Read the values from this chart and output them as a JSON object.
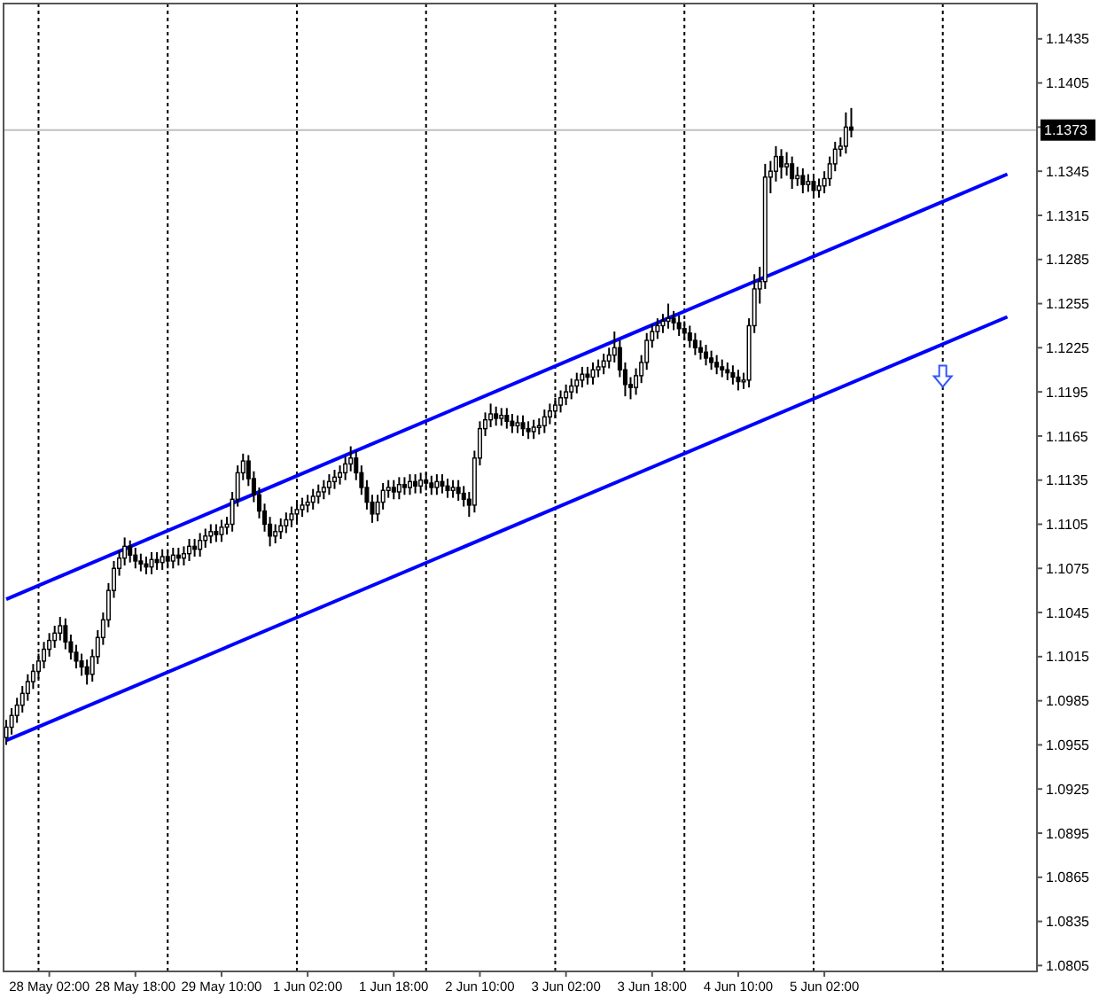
{
  "chart_data": {
    "type": "candlestick",
    "categories": [
      null,
      null,
      null,
      null,
      null,
      null,
      null,
      null,
      "28 May 02:00",
      null,
      null,
      null,
      null,
      null,
      null,
      null,
      null,
      null,
      null,
      null,
      null,
      null,
      null,
      null,
      "28 May 18:00",
      null,
      null,
      null,
      null,
      null,
      null,
      null,
      null,
      null,
      null,
      null,
      null,
      null,
      null,
      null,
      "29 May 10:00",
      null,
      null,
      null,
      null,
      null,
      null,
      null,
      null,
      null,
      null,
      null,
      null,
      null,
      null,
      null,
      "1 Jun 02:00",
      null,
      null,
      null,
      null,
      null,
      null,
      null,
      null,
      null,
      null,
      null,
      null,
      null,
      null,
      null,
      "1 Jun 18:00",
      null,
      null,
      null,
      null,
      null,
      null,
      null,
      null,
      null,
      null,
      null,
      null,
      null,
      null,
      null,
      "2 Jun 10:00",
      null,
      null,
      null,
      null,
      null,
      null,
      null,
      null,
      null,
      null,
      null,
      null,
      null,
      null,
      null,
      "3 Jun 02:00",
      null,
      null,
      null,
      null,
      null,
      null,
      null,
      null,
      null,
      null,
      null,
      null,
      null,
      null,
      null,
      "3 Jun 18:00",
      null,
      null,
      null,
      null,
      null,
      null,
      null,
      null,
      null,
      null,
      null,
      null,
      null,
      null,
      null,
      "4 Jun 10:00",
      null,
      null,
      null,
      null,
      null,
      null,
      null,
      null,
      null,
      null,
      null,
      null,
      null,
      null,
      null,
      "5 Jun 02:00",
      null,
      null,
      null,
      null,
      null,
      null,
      null,
      null,
      null,
      null,
      null,
      null,
      null,
      null,
      null,
      null,
      null,
      null,
      null,
      null,
      null,
      null,
      null,
      null,
      null,
      null,
      null,
      null,
      null,
      null,
      null,
      null,
      null,
      null,
      null,
      null,
      null,
      null,
      null
    ],
    "ohlc": [
      [
        1.096,
        1.0972,
        1.0955,
        1.0967
      ],
      [
        1.0967,
        1.098,
        1.0962,
        1.0975
      ],
      [
        1.0975,
        1.0987,
        1.097,
        1.0982
      ],
      [
        1.0982,
        1.0995,
        1.0977,
        1.099
      ],
      [
        1.099,
        1.1003,
        1.0985,
        1.0998
      ],
      [
        1.0998,
        1.101,
        1.0993,
        1.1005
      ],
      [
        1.1005,
        1.1017,
        1.1,
        1.1012
      ],
      [
        1.1012,
        1.1025,
        1.1007,
        1.102
      ],
      [
        1.102,
        1.1031,
        1.1015,
        1.1026
      ],
      [
        1.1026,
        1.1036,
        1.1021,
        1.1031
      ],
      [
        1.1031,
        1.1042,
        1.1026,
        1.1036
      ],
      [
        1.1036,
        1.1041,
        1.102,
        1.1025
      ],
      [
        1.1025,
        1.103,
        1.1013,
        1.1018
      ],
      [
        1.1018,
        1.1023,
        1.1007,
        1.1012
      ],
      [
        1.1012,
        1.1017,
        1.1002,
        1.1008
      ],
      [
        1.1008,
        1.1013,
        1.0996,
        1.1003
      ],
      [
        1.1003,
        1.102,
        1.0998,
        1.1015
      ],
      [
        1.1015,
        1.1033,
        1.101,
        1.1028
      ],
      [
        1.1028,
        1.1045,
        1.1023,
        1.104
      ],
      [
        1.104,
        1.1065,
        1.1035,
        1.106
      ],
      [
        1.106,
        1.108,
        1.1055,
        1.1075
      ],
      [
        1.1075,
        1.1087,
        1.107,
        1.1082
      ],
      [
        1.1082,
        1.1096,
        1.1077,
        1.109
      ],
      [
        1.109,
        1.1094,
        1.1079,
        1.1084
      ],
      [
        1.1084,
        1.1089,
        1.1075,
        1.108
      ],
      [
        1.108,
        1.1085,
        1.1073,
        1.1078
      ],
      [
        1.1078,
        1.1083,
        1.1071,
        1.1076
      ],
      [
        1.1076,
        1.1086,
        1.1071,
        1.1081
      ],
      [
        1.1081,
        1.1086,
        1.1074,
        1.1079
      ],
      [
        1.1079,
        1.1088,
        1.1074,
        1.1083
      ],
      [
        1.1083,
        1.1088,
        1.1075,
        1.108
      ],
      [
        1.108,
        1.1089,
        1.1075,
        1.1084
      ],
      [
        1.1084,
        1.1089,
        1.1077,
        1.1082
      ],
      [
        1.1082,
        1.109,
        1.1077,
        1.1085
      ],
      [
        1.1085,
        1.1095,
        1.108,
        1.109
      ],
      [
        1.109,
        1.1095,
        1.1083,
        1.1088
      ],
      [
        1.1088,
        1.1099,
        1.1083,
        1.1094
      ],
      [
        1.1094,
        1.1102,
        1.1089,
        1.1097
      ],
      [
        1.1097,
        1.1105,
        1.1092,
        1.11
      ],
      [
        1.11,
        1.1105,
        1.1093,
        1.1098
      ],
      [
        1.1098,
        1.1108,
        1.1093,
        1.1103
      ],
      [
        1.1103,
        1.111,
        1.1098,
        1.1105
      ],
      [
        1.1105,
        1.1127,
        1.11,
        1.1122
      ],
      [
        1.1122,
        1.1145,
        1.1117,
        1.114
      ],
      [
        1.114,
        1.1153,
        1.1135,
        1.1148
      ],
      [
        1.1148,
        1.1152,
        1.1131,
        1.1136
      ],
      [
        1.1136,
        1.1141,
        1.112,
        1.1125
      ],
      [
        1.1125,
        1.113,
        1.1109,
        1.1114
      ],
      [
        1.1114,
        1.1119,
        1.11,
        1.1105
      ],
      [
        1.1105,
        1.111,
        1.109,
        1.1097
      ],
      [
        1.1097,
        1.1105,
        1.1092,
        1.11
      ],
      [
        1.11,
        1.1109,
        1.1095,
        1.1104
      ],
      [
        1.1104,
        1.1113,
        1.1099,
        1.1108
      ],
      [
        1.1108,
        1.1117,
        1.1103,
        1.1112
      ],
      [
        1.1112,
        1.112,
        1.1107,
        1.1115
      ],
      [
        1.1115,
        1.1123,
        1.111,
        1.1118
      ],
      [
        1.1118,
        1.1125,
        1.1113,
        1.112
      ],
      [
        1.112,
        1.1129,
        1.1115,
        1.1124
      ],
      [
        1.1124,
        1.1132,
        1.1119,
        1.1127
      ],
      [
        1.1127,
        1.1135,
        1.1122,
        1.113
      ],
      [
        1.113,
        1.1139,
        1.1125,
        1.1134
      ],
      [
        1.1134,
        1.1142,
        1.1129,
        1.1137
      ],
      [
        1.1137,
        1.1145,
        1.1132,
        1.114
      ],
      [
        1.114,
        1.1151,
        1.1135,
        1.1146
      ],
      [
        1.1146,
        1.1158,
        1.1141,
        1.115
      ],
      [
        1.115,
        1.1155,
        1.1135,
        1.114
      ],
      [
        1.114,
        1.1145,
        1.1125,
        1.113
      ],
      [
        1.113,
        1.1135,
        1.1115,
        1.112
      ],
      [
        1.112,
        1.1125,
        1.1106,
        1.1112
      ],
      [
        1.1112,
        1.1125,
        1.1107,
        1.112
      ],
      [
        1.112,
        1.1133,
        1.1115,
        1.1128
      ],
      [
        1.1128,
        1.1135,
        1.1123,
        1.113
      ],
      [
        1.113,
        1.1135,
        1.1122,
        1.1127
      ],
      [
        1.1127,
        1.1137,
        1.1122,
        1.1132
      ],
      [
        1.1132,
        1.1137,
        1.1125,
        1.113
      ],
      [
        1.113,
        1.1139,
        1.1125,
        1.1134
      ],
      [
        1.1134,
        1.1139,
        1.1126,
        1.1131
      ],
      [
        1.1131,
        1.114,
        1.1126,
        1.1135
      ],
      [
        1.1135,
        1.114,
        1.1128,
        1.1133
      ],
      [
        1.1133,
        1.1138,
        1.1125,
        1.113
      ],
      [
        1.113,
        1.1139,
        1.1125,
        1.1134
      ],
      [
        1.1134,
        1.1139,
        1.1126,
        1.1131
      ],
      [
        1.1131,
        1.1136,
        1.1123,
        1.1128
      ],
      [
        1.1128,
        1.1135,
        1.1123,
        1.113
      ],
      [
        1.113,
        1.1135,
        1.1121,
        1.1126
      ],
      [
        1.1126,
        1.1131,
        1.1117,
        1.1122
      ],
      [
        1.1122,
        1.1127,
        1.111,
        1.1118
      ],
      [
        1.1118,
        1.1155,
        1.1113,
        1.115
      ],
      [
        1.115,
        1.1175,
        1.1145,
        1.117
      ],
      [
        1.117,
        1.1181,
        1.1165,
        1.1176
      ],
      [
        1.1176,
        1.1187,
        1.1171,
        1.118
      ],
      [
        1.118,
        1.1185,
        1.1172,
        1.1177
      ],
      [
        1.1177,
        1.1184,
        1.1172,
        1.1179
      ],
      [
        1.1179,
        1.1184,
        1.117,
        1.1175
      ],
      [
        1.1175,
        1.118,
        1.1167,
        1.1172
      ],
      [
        1.1172,
        1.1179,
        1.1167,
        1.1174
      ],
      [
        1.1174,
        1.1179,
        1.1165,
        1.117
      ],
      [
        1.117,
        1.1175,
        1.1163,
        1.1168
      ],
      [
        1.1168,
        1.1176,
        1.1163,
        1.1171
      ],
      [
        1.1171,
        1.1177,
        1.1166,
        1.1172
      ],
      [
        1.1172,
        1.1183,
        1.1167,
        1.1178
      ],
      [
        1.1178,
        1.1187,
        1.1173,
        1.1182
      ],
      [
        1.1182,
        1.1191,
        1.1177,
        1.1186
      ],
      [
        1.1186,
        1.1196,
        1.1181,
        1.1191
      ],
      [
        1.1191,
        1.12,
        1.1186,
        1.1195
      ],
      [
        1.1195,
        1.1204,
        1.119,
        1.1199
      ],
      [
        1.1199,
        1.1208,
        1.1194,
        1.1203
      ],
      [
        1.1203,
        1.1212,
        1.1198,
        1.1207
      ],
      [
        1.1207,
        1.1212,
        1.12,
        1.1205
      ],
      [
        1.1205,
        1.1215,
        1.12,
        1.121
      ],
      [
        1.121,
        1.1217,
        1.1205,
        1.1212
      ],
      [
        1.1212,
        1.1221,
        1.1207,
        1.1216
      ],
      [
        1.1216,
        1.1225,
        1.1211,
        1.122
      ],
      [
        1.122,
        1.1236,
        1.1215,
        1.1225
      ],
      [
        1.1225,
        1.123,
        1.1205,
        1.121
      ],
      [
        1.121,
        1.1215,
        1.1192,
        1.12
      ],
      [
        1.12,
        1.1205,
        1.119,
        1.1198
      ],
      [
        1.1198,
        1.1211,
        1.1193,
        1.1206
      ],
      [
        1.1206,
        1.122,
        1.1201,
        1.1215
      ],
      [
        1.1215,
        1.1235,
        1.121,
        1.123
      ],
      [
        1.123,
        1.1241,
        1.1225,
        1.1236
      ],
      [
        1.1236,
        1.1245,
        1.1231,
        1.124
      ],
      [
        1.124,
        1.1248,
        1.1235,
        1.1243
      ],
      [
        1.1243,
        1.1255,
        1.1238,
        1.1245
      ],
      [
        1.1245,
        1.125,
        1.1237,
        1.1242
      ],
      [
        1.1242,
        1.1247,
        1.1233,
        1.1238
      ],
      [
        1.1238,
        1.1243,
        1.123,
        1.1235
      ],
      [
        1.1235,
        1.124,
        1.1225,
        1.123
      ],
      [
        1.123,
        1.1235,
        1.122,
        1.1225
      ],
      [
        1.1225,
        1.123,
        1.1217,
        1.1222
      ],
      [
        1.1222,
        1.1227,
        1.1213,
        1.1218
      ],
      [
        1.1218,
        1.1223,
        1.121,
        1.1215
      ],
      [
        1.1215,
        1.122,
        1.1207,
        1.1212
      ],
      [
        1.1212,
        1.1217,
        1.1205,
        1.121
      ],
      [
        1.121,
        1.1215,
        1.1203,
        1.1208
      ],
      [
        1.1208,
        1.1213,
        1.12,
        1.1205
      ],
      [
        1.1205,
        1.121,
        1.1196,
        1.1202
      ],
      [
        1.1202,
        1.1208,
        1.1197,
        1.1203
      ],
      [
        1.1203,
        1.1245,
        1.1198,
        1.124
      ],
      [
        1.124,
        1.1275,
        1.1235,
        1.1265
      ],
      [
        1.1265,
        1.128,
        1.1255,
        1.127
      ],
      [
        1.127,
        1.135,
        1.1265,
        1.1341
      ],
      [
        1.1341,
        1.1352,
        1.133,
        1.1345
      ],
      [
        1.1345,
        1.1362,
        1.1338,
        1.1355
      ],
      [
        1.1355,
        1.136,
        1.134,
        1.1348
      ],
      [
        1.1348,
        1.1358,
        1.1342,
        1.135
      ],
      [
        1.135,
        1.1355,
        1.1333,
        1.134
      ],
      [
        1.134,
        1.1348,
        1.1335,
        1.1342
      ],
      [
        1.1342,
        1.1347,
        1.133,
        1.1336
      ],
      [
        1.1336,
        1.1343,
        1.1331,
        1.1338
      ],
      [
        1.1338,
        1.1343,
        1.1327,
        1.1332
      ],
      [
        1.1332,
        1.134,
        1.1327,
        1.1335
      ],
      [
        1.1335,
        1.1345,
        1.133,
        1.134
      ],
      [
        1.134,
        1.1355,
        1.1335,
        1.135
      ],
      [
        1.135,
        1.1365,
        1.1345,
        1.136
      ],
      [
        1.136,
        1.1368,
        1.1355,
        1.1362
      ],
      [
        1.1362,
        1.1385,
        1.1357,
        1.1375
      ],
      [
        1.1375,
        1.1388,
        1.1368,
        1.1373
      ],
      null,
      null,
      null,
      null,
      null,
      null,
      null,
      null,
      null,
      null,
      null,
      null,
      null,
      null,
      null,
      null,
      null,
      null,
      null,
      null,
      null,
      null,
      null,
      null,
      null,
      null,
      null,
      null,
      null,
      null,
      null,
      null,
      null,
      null
    ],
    "series": [
      {
        "type": "line",
        "color": "#0000ff",
        "values": [
          1.1054,
          null,
          null,
          null,
          null,
          null,
          null,
          null,
          null,
          null,
          null,
          null,
          null,
          null,
          null,
          null,
          null,
          null,
          null,
          null,
          null,
          null,
          null,
          null,
          null,
          null,
          null,
          null,
          null,
          null,
          null,
          null,
          null,
          null,
          null,
          null,
          null,
          null,
          null,
          null,
          null,
          null,
          null,
          null,
          null,
          null,
          null,
          null,
          null,
          null,
          null,
          null,
          null,
          null,
          null,
          null,
          null,
          null,
          null,
          null,
          null,
          null,
          null,
          null,
          null,
          null,
          null,
          null,
          null,
          null,
          null,
          null,
          null,
          null,
          null,
          null,
          null,
          null,
          null,
          null,
          null,
          null,
          null,
          null,
          null,
          null,
          null,
          null,
          null,
          null,
          null,
          null,
          null,
          null,
          null,
          null,
          null,
          null,
          null,
          null,
          null,
          null,
          null,
          null,
          null,
          null,
          null,
          null,
          null,
          null,
          null,
          null,
          null,
          null,
          null,
          null,
          null,
          null,
          null,
          null,
          null,
          null,
          null,
          null,
          null,
          null,
          null,
          null,
          null,
          null,
          null,
          null,
          null,
          null,
          null,
          null,
          null,
          null,
          null,
          null,
          null,
          null,
          null,
          null,
          null,
          null,
          null,
          null,
          null,
          null,
          null,
          null,
          null,
          null,
          null,
          null,
          null,
          null,
          null,
          null,
          null,
          null,
          null,
          null,
          null,
          null,
          null,
          null,
          null,
          null,
          null,
          null,
          null,
          null,
          null,
          null,
          null,
          null,
          null,
          null,
          null,
          null,
          null,
          null,
          null,
          null,
          1.1343,
          null,
          null,
          null,
          null,
          null
        ]
      },
      {
        "type": "line",
        "color": "#0000ff",
        "values": [
          1.0958,
          null,
          null,
          null,
          null,
          null,
          null,
          null,
          null,
          null,
          null,
          null,
          null,
          null,
          null,
          null,
          null,
          null,
          null,
          null,
          null,
          null,
          null,
          null,
          null,
          null,
          null,
          null,
          null,
          null,
          null,
          null,
          null,
          null,
          null,
          null,
          null,
          null,
          null,
          null,
          null,
          null,
          null,
          null,
          null,
          null,
          null,
          null,
          null,
          null,
          null,
          null,
          null,
          null,
          null,
          null,
          null,
          null,
          null,
          null,
          null,
          null,
          null,
          null,
          null,
          null,
          null,
          null,
          null,
          null,
          null,
          null,
          null,
          null,
          null,
          null,
          null,
          null,
          null,
          null,
          null,
          null,
          null,
          null,
          null,
          null,
          null,
          null,
          null,
          null,
          null,
          null,
          null,
          null,
          null,
          null,
          null,
          null,
          null,
          null,
          null,
          null,
          null,
          null,
          null,
          null,
          null,
          null,
          null,
          null,
          null,
          null,
          null,
          null,
          null,
          null,
          null,
          null,
          null,
          null,
          null,
          null,
          null,
          null,
          null,
          null,
          null,
          null,
          null,
          null,
          null,
          null,
          null,
          null,
          null,
          null,
          null,
          null,
          null,
          null,
          null,
          null,
          null,
          null,
          null,
          null,
          null,
          null,
          null,
          null,
          null,
          null,
          null,
          null,
          null,
          null,
          null,
          null,
          null,
          null,
          null,
          null,
          null,
          null,
          null,
          null,
          null,
          null,
          null,
          null,
          null,
          null,
          null,
          null,
          null,
          null,
          null,
          null,
          null,
          null,
          null,
          null,
          null,
          null,
          null,
          null,
          1.1246,
          null,
          null,
          null,
          null,
          null
        ]
      }
    ],
    "ylim": [
      1.0801,
      1.1459
    ],
    "yticks": [
      1.0805,
      1.0835,
      1.0865,
      1.0895,
      1.0925,
      1.0955,
      1.0985,
      1.1015,
      1.1045,
      1.1075,
      1.1105,
      1.1135,
      1.1165,
      1.1195,
      1.1225,
      1.1255,
      1.1285,
      1.1315,
      1.1345,
      {
        "value": 1.1375,
        "label": null
      },
      1.1405,
      1.1435
    ],
    "ref_lines": [
      {
        "axis": "y",
        "value": 1.1373,
        "label": "1.1373",
        "color": "#c0c0c0"
      }
    ]
  }
}
